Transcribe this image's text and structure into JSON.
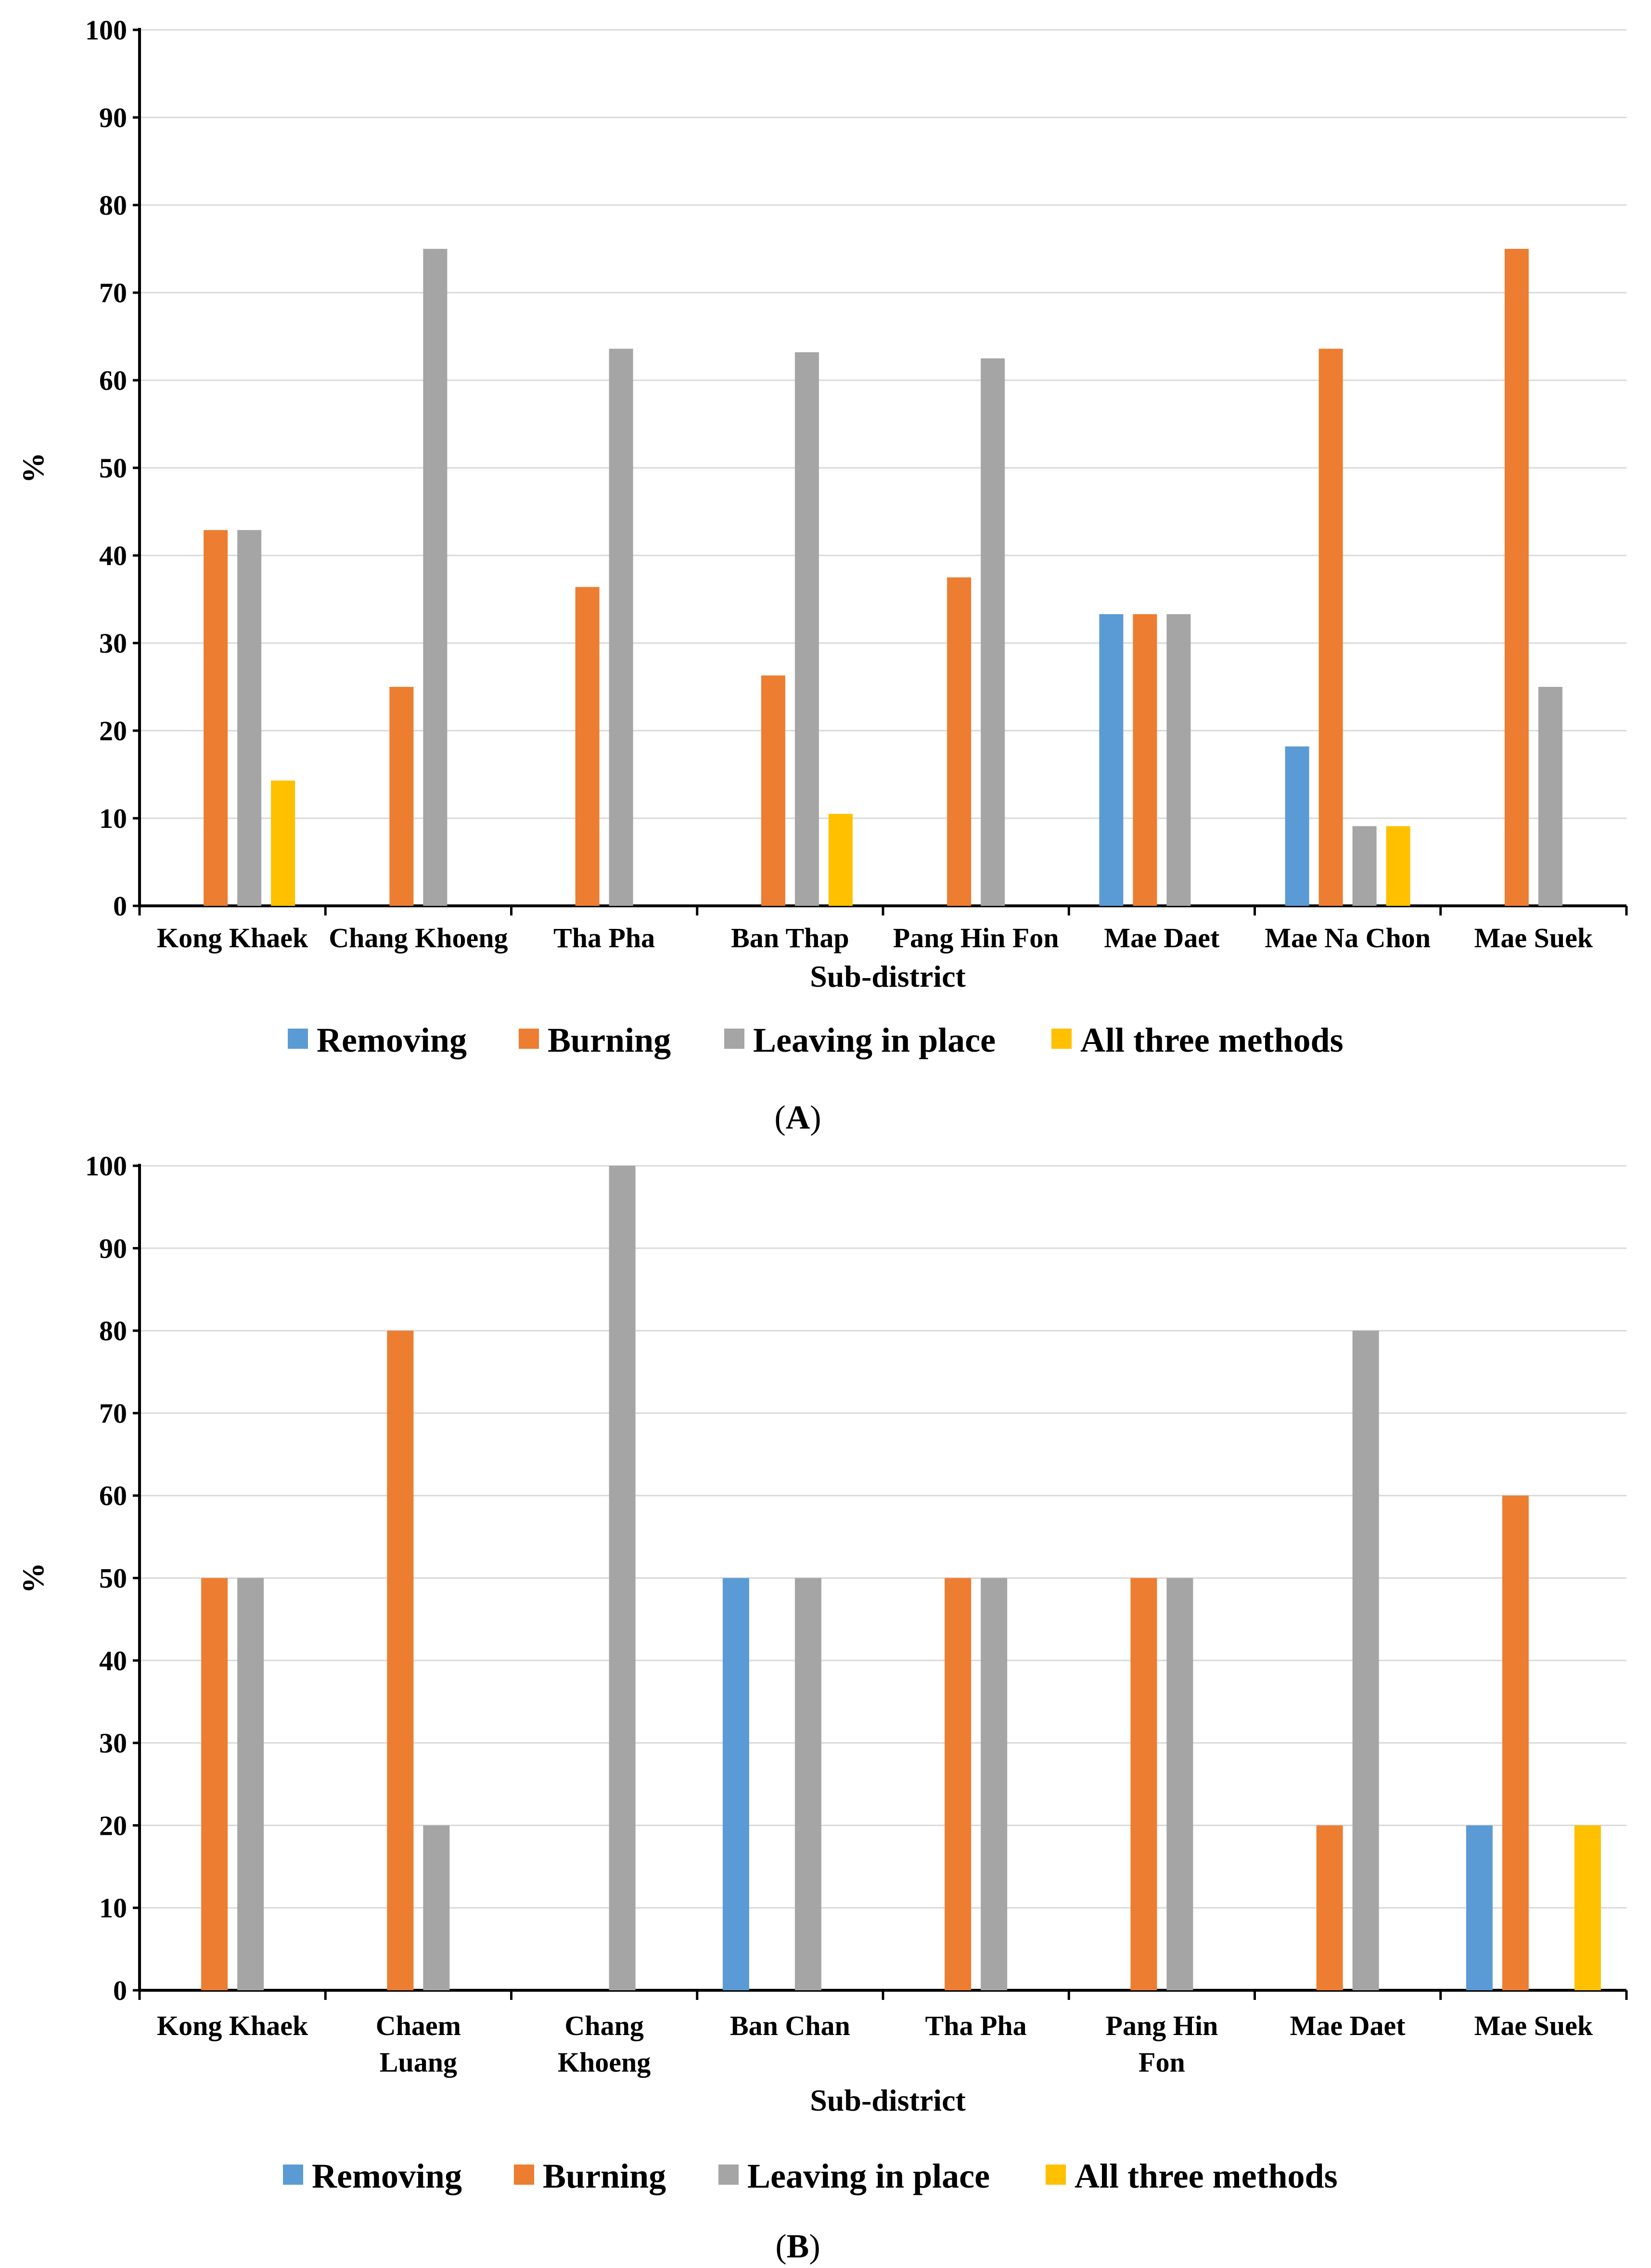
{
  "chart_data": [
    {
      "type": "bar",
      "panel_label": "A",
      "xlabel": "Sub-district",
      "ylabel": "%",
      "ylim": [
        0,
        100
      ],
      "yticks": [
        0,
        10,
        20,
        30,
        40,
        50,
        60,
        70,
        80,
        90,
        100
      ],
      "grid": true,
      "legend": "bottom",
      "categories": [
        [
          "Kong Khaek"
        ],
        [
          "Chang Khoeng"
        ],
        [
          "Tha Pha"
        ],
        [
          "Ban Thap"
        ],
        [
          "Pang Hin Fon"
        ],
        [
          "Mae Daet"
        ],
        [
          "Mae Na Chon"
        ],
        [
          "Mae Suek"
        ]
      ],
      "series": [
        {
          "name": "Removing",
          "color": "#5b9bd5",
          "values": [
            0,
            0,
            0,
            0,
            0,
            33.3,
            18.2,
            0
          ]
        },
        {
          "name": "Burning",
          "color": "#ed7d31",
          "values": [
            42.9,
            25,
            36.4,
            26.3,
            37.5,
            33.3,
            63.6,
            75
          ]
        },
        {
          "name": "Leaving in place",
          "color": "#a5a5a5",
          "values": [
            42.9,
            75,
            63.6,
            63.2,
            62.5,
            33.3,
            9.1,
            25
          ]
        },
        {
          "name": "All three methods",
          "color": "#ffc000",
          "values": [
            14.3,
            0,
            0,
            10.5,
            0,
            0,
            9.1,
            0
          ]
        }
      ]
    },
    {
      "type": "bar",
      "panel_label": "B",
      "xlabel": "Sub-district",
      "ylabel": "%",
      "ylim": [
        0,
        100
      ],
      "yticks": [
        0,
        10,
        20,
        30,
        40,
        50,
        60,
        70,
        80,
        90,
        100
      ],
      "grid": true,
      "legend": "bottom",
      "categories": [
        [
          "Kong Khaek"
        ],
        [
          "Chaem",
          "Luang"
        ],
        [
          "Chang",
          "Khoeng"
        ],
        [
          "Ban Chan"
        ],
        [
          "Tha Pha"
        ],
        [
          "Pang Hin",
          "Fon"
        ],
        [
          "Mae Daet"
        ],
        [
          "Mae Suek"
        ]
      ],
      "series": [
        {
          "name": "Removing",
          "color": "#5b9bd5",
          "values": [
            0,
            0,
            0,
            50,
            0,
            0,
            0,
            20
          ]
        },
        {
          "name": "Burning",
          "color": "#ed7d31",
          "values": [
            50,
            80,
            0,
            0,
            50,
            50,
            20,
            60
          ]
        },
        {
          "name": "Leaving in place",
          "color": "#a5a5a5",
          "values": [
            50,
            20,
            100,
            50,
            50,
            50,
            80,
            0
          ]
        },
        {
          "name": "All three methods",
          "color": "#ffc000",
          "values": [
            0,
            0,
            0,
            0,
            0,
            0,
            0,
            20
          ]
        }
      ]
    }
  ]
}
